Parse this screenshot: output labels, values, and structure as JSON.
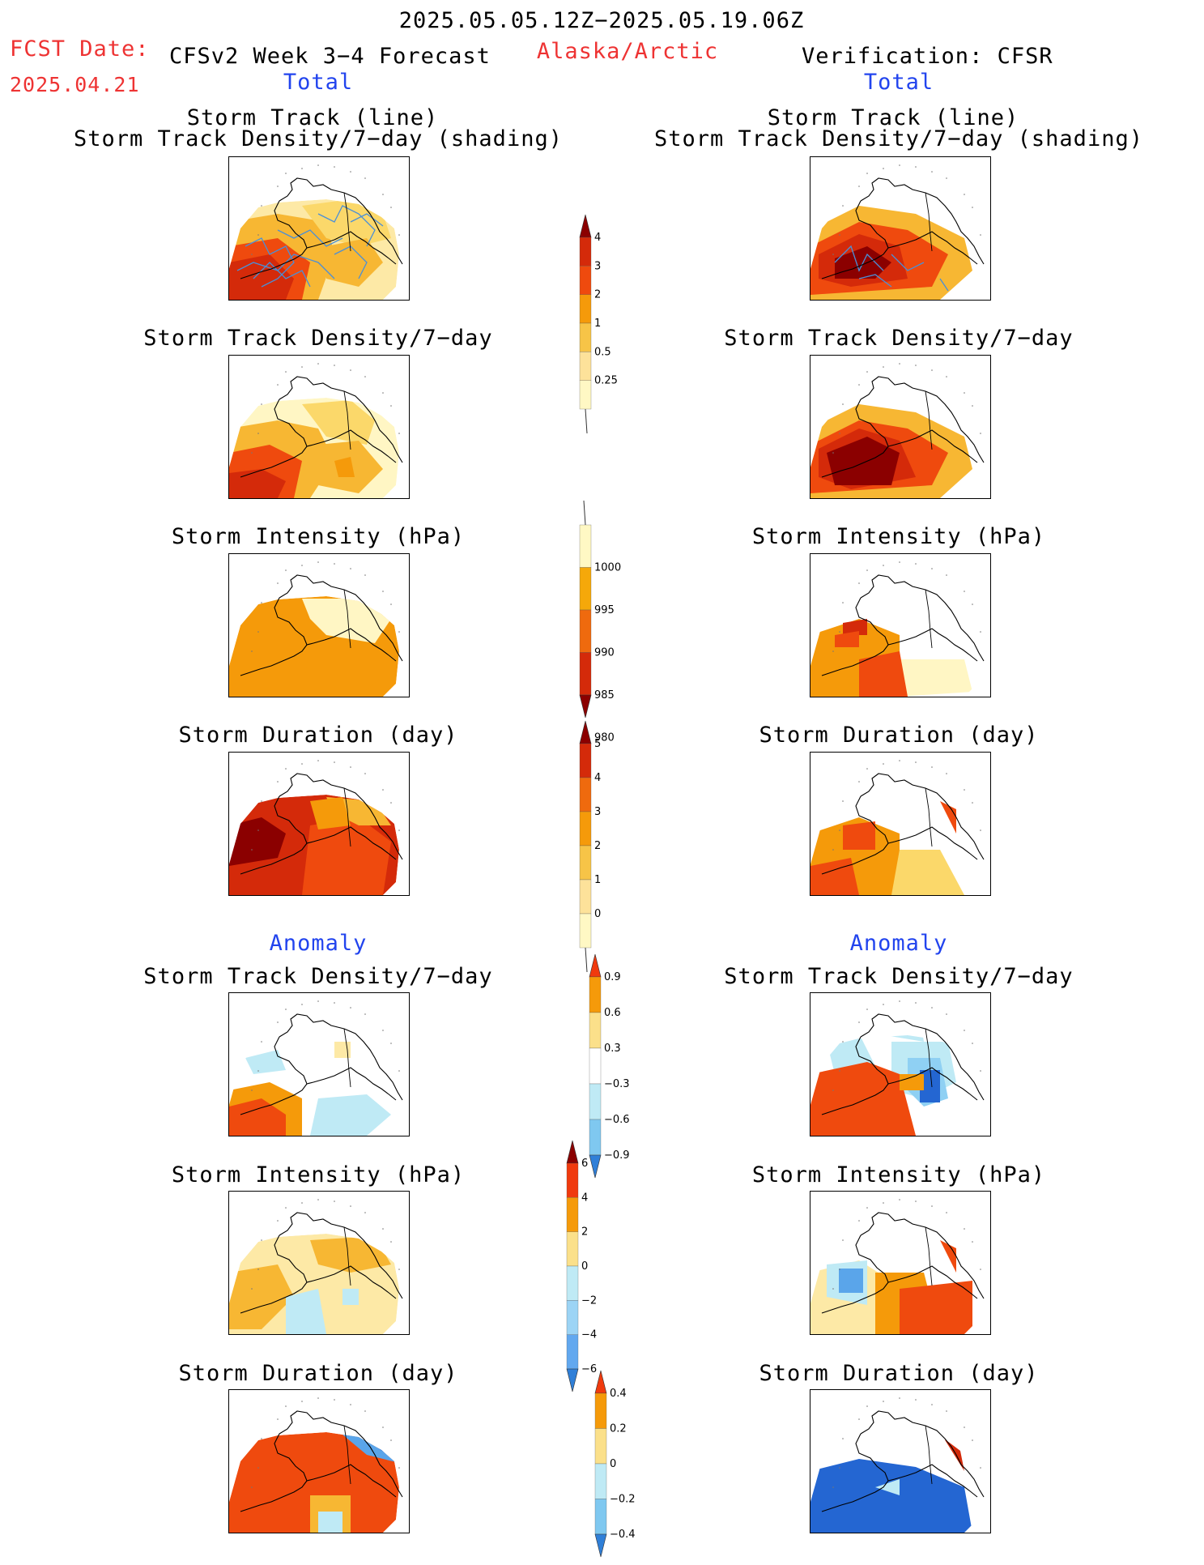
{
  "header": {
    "date_range": "2025.05.05.12Z−2025.05.19.06Z",
    "fcst_label": "FCST Date:",
    "fcst_date": "2025.04.21",
    "model_title": "CFSv2 Week 3−4 Forecast",
    "region": "Alaska/Arctic",
    "verification_title": "Verification: CFSR",
    "left_total": "Total",
    "right_total": "Total"
  },
  "sections": {
    "left_anomaly": "Anomaly",
    "right_anomaly": "Anomaly"
  },
  "panel_titles": {
    "track_line": "Storm Track (line)",
    "track_shading": "Storm Track Density/7−day (shading)",
    "track_density": "Storm Track Density/7−day",
    "intensity": "Storm Intensity (hPa)",
    "duration": "Storm Duration (day)"
  },
  "colorbars": {
    "density_total": {
      "labels": [
        "4",
        "3",
        "2",
        "1",
        "0.5",
        "0.25"
      ],
      "colors": [
        "#8b0000",
        "#d42a0a",
        "#ef4a0e",
        "#f59a0a",
        "#f7c447",
        "#fde29a",
        "#fff8c4"
      ]
    },
    "intensity_total": {
      "labels": [
        "1000",
        "995",
        "990",
        "985",
        "980"
      ],
      "colors": [
        "#fff8c4",
        "#f5a80a",
        "#ef6a0e",
        "#d42a0a",
        "#8b0000"
      ]
    },
    "duration_total": {
      "labels": [
        "5",
        "4",
        "3",
        "2",
        "1",
        "0"
      ],
      "colors": [
        "#8b0000",
        "#d42a0a",
        "#ef6a0e",
        "#f59a0a",
        "#f7c447",
        "#fde29a",
        "#fff8c4"
      ]
    },
    "density_anom": {
      "labels": [
        "0.9",
        "0.6",
        "0.3",
        "−0.3",
        "−0.6",
        "−0.9"
      ],
      "colors": [
        "#f03a0e",
        "#f59a0a",
        "#fbe08a",
        "#ffffff",
        "#bfeaf5",
        "#7fc8f0",
        "#2f7fd8"
      ]
    },
    "intensity_anom": {
      "labels": [
        "6",
        "4",
        "2",
        "0",
        "−2",
        "−4",
        "−6"
      ],
      "colors": [
        "#8b0000",
        "#f03a0e",
        "#f59a0a",
        "#fbe08a",
        "#bfeaf5",
        "#9cd4f5",
        "#62a8ef",
        "#2f7fd8"
      ]
    },
    "duration_anom": {
      "labels": [
        "0.4",
        "0.2",
        "0",
        "−0.2",
        "−0.4"
      ],
      "colors": [
        "#f03a0e",
        "#f59a0a",
        "#fbe08a",
        "#bfeaf5",
        "#7fc8f0",
        "#2f7fd8"
      ]
    }
  },
  "colors": {
    "header_red": "#ee3333",
    "header_blue": "#2244ee"
  }
}
